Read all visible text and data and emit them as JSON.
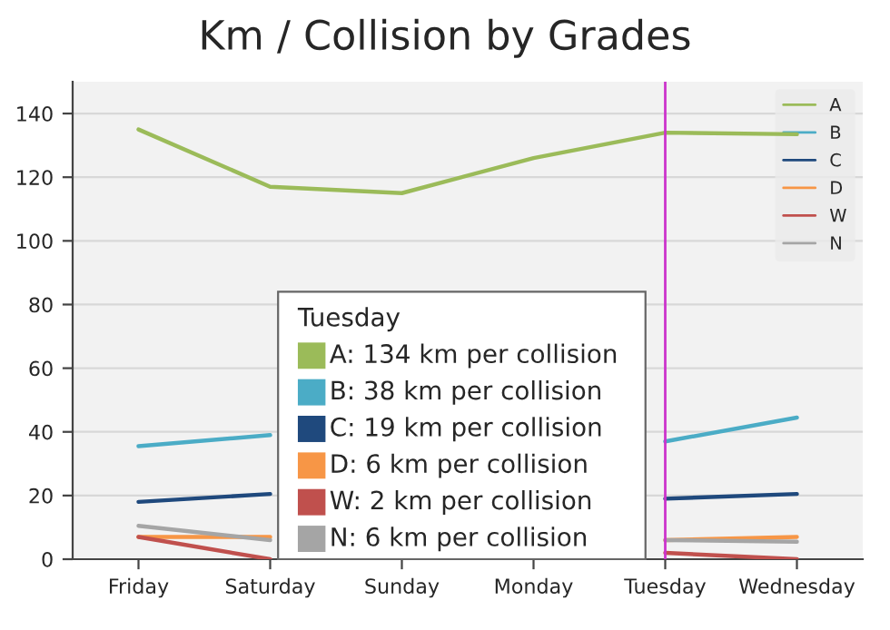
{
  "chart_data": {
    "type": "line",
    "title": "Km / Collision by Grades",
    "categories": [
      "Friday",
      "Saturday",
      "Sunday",
      "Monday",
      "Tuesday",
      "Wednesday"
    ],
    "series": [
      {
        "name": "A",
        "color": "#9bbb59",
        "values": [
          135,
          117,
          115,
          126,
          134,
          133.5
        ]
      },
      {
        "name": "B",
        "color": "#4bacc6",
        "values": [
          35.5,
          39,
          null,
          null,
          37,
          44.5
        ]
      },
      {
        "name": "C",
        "color": "#1f497d",
        "values": [
          18,
          20.5,
          null,
          null,
          19,
          20.5
        ]
      },
      {
        "name": "D",
        "color": "#f79646",
        "values": [
          7,
          7,
          null,
          null,
          6,
          7
        ]
      },
      {
        "name": "W",
        "color": "#c0504d",
        "values": [
          7,
          0,
          null,
          null,
          2,
          0
        ]
      },
      {
        "name": "N",
        "color": "#a5a5a5",
        "values": [
          10.5,
          6,
          null,
          null,
          6,
          5.5
        ]
      }
    ],
    "ylim": [
      0,
      150
    ],
    "yticks": [
      0,
      20,
      40,
      60,
      80,
      100,
      120,
      140
    ],
    "grid": "y",
    "legend": "top right",
    "marker": "none",
    "line_style": "solid",
    "ref_lines": [
      {
        "axis": "x",
        "value": "Tuesday",
        "color": "#cc33cc"
      }
    ],
    "annotations": [
      "Tuesday",
      "A: 134 km per collision",
      "B: 38 km per collision",
      "C: 19 km per collision",
      "D: 6 km per collision",
      "W: 2 km per collision",
      "N: 6 km per collision"
    ]
  }
}
